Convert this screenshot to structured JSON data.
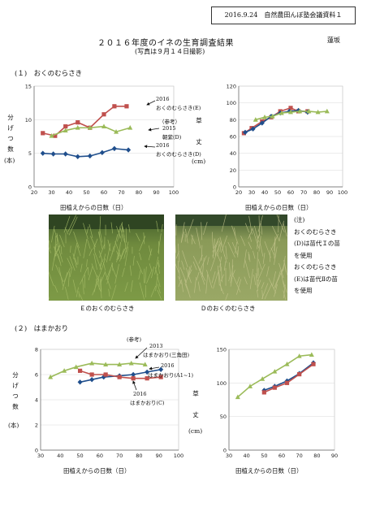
{
  "header": {
    "doc_ref": "2016.9.24　自然農田んぼ塾会議資料１",
    "title": "２０１６年度のイネの生育調査結果",
    "author": "蓮坂",
    "subtitle": "(写真は９月１４日撮影)"
  },
  "section1": {
    "heading": "(１)　おくのむらさき",
    "left_chart": {
      "ylabel": [
        "分",
        "げ",
        "つ",
        "数"
      ],
      "ylabel_unit": "(本)",
      "xlabel": "田植えからの日数（日）",
      "annotations": {
        "e_year": "2016",
        "e_name": "おくのむらさき(E)",
        "ref_label": "（参考）",
        "ref_year": "2015",
        "ref_name": "朝紫(D)",
        "d_year": "2016",
        "d_name": "おくのむらさき(D)"
      }
    },
    "right_chart": {
      "ylabel": [
        "草",
        "丈"
      ],
      "ylabel_unit": "(cm)",
      "xlabel": "田植えからの日数（日）"
    },
    "photo_e_caption": "Ｅのおくのむらさき",
    "photo_d_caption": "Ｄのおくのむらさき",
    "note_lines": [
      "(注)",
      "おくのむらさき",
      "(D)は苗代Ｉの苗",
      "を使用",
      "おくのむらさき",
      "(E)は苗代Ⅱの苗",
      "を使用"
    ]
  },
  "section2": {
    "heading": "(２)　はまかおり",
    "left_chart": {
      "ylabel": [
        "分",
        "げ",
        "つ",
        "数"
      ],
      "ylabel_unit": "(本)",
      "xlabel": "田植えからの日数（日）",
      "annotations": {
        "ref_label": "(参考)",
        "green_year": "2013",
        "green_name": "はまかおり(三角田)",
        "blue_year": "2016",
        "blue_name": "はまかおり(A1~1)",
        "red_year": "2016",
        "red_name": "はまかおり(C)"
      }
    },
    "right_chart": {
      "ylabel": [
        "草",
        "丈"
      ],
      "ylabel_unit": "(cm)",
      "xlabel": "田植えからの日数（日）"
    }
  },
  "chart_data": [
    {
      "type": "line",
      "xlim": [
        20,
        100
      ],
      "ylim": [
        0,
        15
      ],
      "xticks": [
        20,
        30,
        40,
        50,
        60,
        70,
        80,
        90,
        100
      ],
      "yticks": [
        0,
        5,
        10,
        15
      ],
      "series": [
        {
          "color": "#c0504d",
          "marker": "square",
          "x": [
            25,
            32,
            38,
            45,
            52,
            60,
            66,
            73
          ],
          "y": [
            8.0,
            7.6,
            9.0,
            9.6,
            8.8,
            10.8,
            12.0,
            12.0
          ]
        },
        {
          "color": "#9bbb59",
          "marker": "triangle",
          "x": [
            30,
            38,
            45,
            52,
            60,
            67,
            75
          ],
          "y": [
            7.6,
            8.4,
            8.8,
            8.8,
            9.0,
            8.2,
            8.8
          ]
        },
        {
          "color": "#1f4e8c",
          "marker": "diamond",
          "x": [
            25,
            31,
            38,
            45,
            52,
            59,
            66,
            74
          ],
          "y": [
            5.0,
            4.9,
            4.9,
            4.5,
            4.6,
            5.1,
            5.7,
            5.5
          ]
        }
      ]
    },
    {
      "type": "line",
      "xlim": [
        20,
        100
      ],
      "ylim": [
        0,
        120
      ],
      "xticks": [
        20,
        30,
        40,
        50,
        60,
        70,
        80,
        90,
        100
      ],
      "yticks": [
        0,
        20,
        40,
        60,
        80,
        100,
        120
      ],
      "series": [
        {
          "color": "#c0504d",
          "marker": "square",
          "x": [
            24,
            30,
            38,
            45,
            52,
            60,
            66,
            73
          ],
          "y": [
            64,
            70,
            78,
            83,
            90,
            94,
            90,
            90
          ]
        },
        {
          "color": "#1f4e8c",
          "marker": "diamond",
          "x": [
            25,
            31,
            38,
            45,
            52,
            59,
            66,
            73
          ],
          "y": [
            65,
            69,
            76,
            84,
            88,
            90,
            91,
            89
          ]
        },
        {
          "color": "#9bbb59",
          "marker": "triangle",
          "x": [
            33,
            40,
            46,
            53,
            60,
            67,
            74,
            81,
            88
          ],
          "y": [
            80,
            83,
            84,
            88,
            89,
            90,
            90,
            89,
            90
          ]
        }
      ]
    },
    {
      "type": "line",
      "xlim": [
        30,
        100
      ],
      "ylim": [
        0,
        8
      ],
      "xticks": [
        30,
        40,
        50,
        60,
        70,
        80,
        90,
        100
      ],
      "yticks": [
        0,
        2,
        4,
        6,
        8
      ],
      "series": [
        {
          "color": "#9bbb59",
          "marker": "triangle",
          "x": [
            35,
            42,
            48,
            56,
            63,
            70,
            76,
            83
          ],
          "y": [
            5.8,
            6.3,
            6.6,
            6.9,
            6.8,
            6.8,
            6.9,
            6.8
          ]
        },
        {
          "color": "#1f4e8c",
          "marker": "diamond",
          "x": [
            50,
            56,
            62,
            70,
            77,
            84,
            91
          ],
          "y": [
            5.4,
            5.6,
            5.8,
            5.9,
            6.0,
            6.2,
            6.4
          ]
        },
        {
          "color": "#c0504d",
          "marker": "square",
          "x": [
            50,
            56,
            63,
            70,
            77,
            84,
            91
          ],
          "y": [
            6.3,
            6.0,
            6.0,
            5.8,
            5.7,
            5.7,
            5.8
          ]
        }
      ]
    },
    {
      "type": "line",
      "xlim": [
        30,
        90
      ],
      "ylim": [
        0,
        150
      ],
      "xticks": [
        30,
        40,
        50,
        60,
        70,
        80,
        90
      ],
      "yticks": [
        0,
        50,
        100,
        150
      ],
      "series": [
        {
          "color": "#9bbb59",
          "marker": "triangle",
          "x": [
            35,
            42,
            49,
            56,
            63,
            70,
            77
          ],
          "y": [
            79,
            95,
            106,
            117,
            128,
            140,
            142
          ]
        },
        {
          "color": "#1f4e8c",
          "marker": "diamond",
          "x": [
            50,
            56,
            63,
            70,
            78
          ],
          "y": [
            89,
            95,
            103,
            114,
            130
          ]
        },
        {
          "color": "#c0504d",
          "marker": "square",
          "x": [
            50,
            56,
            63,
            70,
            78
          ],
          "y": [
            86,
            93,
            100,
            113,
            128
          ]
        }
      ]
    }
  ]
}
